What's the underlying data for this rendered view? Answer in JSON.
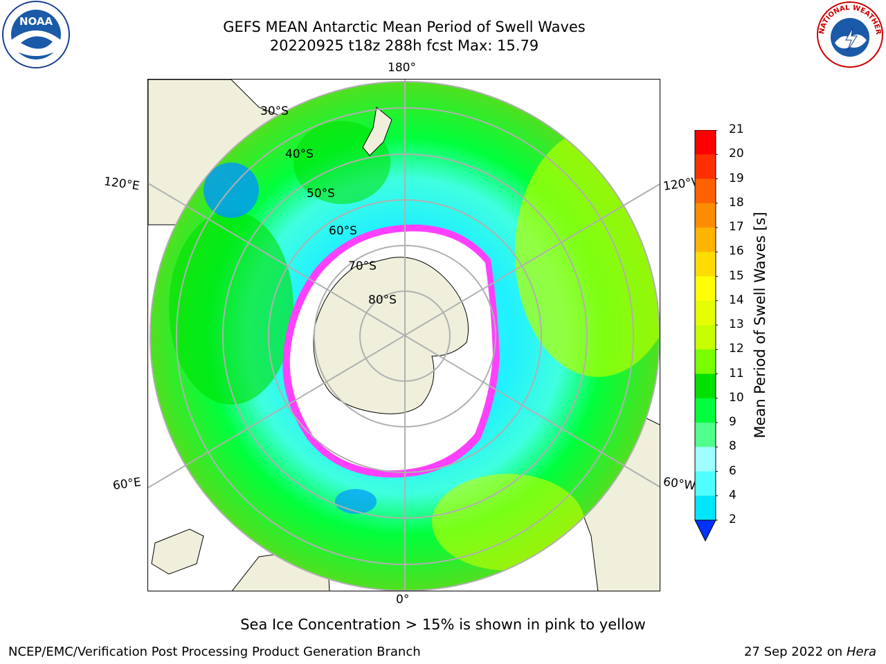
{
  "title_line1": "GEFS MEAN Antarctic Mean Period of Swell Waves",
  "title_line2": "20220925 t18z 288h fcst   Max: 15.79",
  "longitude_labels": {
    "top": "180°",
    "left": "120°E",
    "right": "120°W",
    "bottom_left": "60°E",
    "bottom_right": "60°W",
    "bottom": "0°"
  },
  "latitude_labels": [
    "30°S",
    "40°S",
    "50°S",
    "60°S",
    "70°S",
    "80°S"
  ],
  "colorbar": {
    "title": "Mean Period of Swell Waves [s]",
    "ticks": [
      "21",
      "20",
      "19",
      "18",
      "17",
      "16",
      "15",
      "14",
      "13",
      "12",
      "11",
      "10",
      "9",
      "8",
      "6",
      "4",
      "2"
    ],
    "colors": [
      "#ff0000",
      "#ff3000",
      "#ff6000",
      "#ff8c00",
      "#ffb400",
      "#ffdc00",
      "#ffff00",
      "#e6ff00",
      "#c8ff00",
      "#78ff00",
      "#00e000",
      "#00ff3c",
      "#50ff8c",
      "#a0ffff",
      "#50ffff",
      "#00e6ff",
      "#0096ff",
      "#0032ff"
    ]
  },
  "sea_ice_note": "Sea Ice Concentration > 15% is shown in pink to yellow",
  "footer_left": "NCEP/EMC/Verification Post Processing Product Generation Branch",
  "footer_right_date": "27 Sep 2022 on",
  "footer_right_host": "Hera",
  "logos": {
    "left": "noaa-logo",
    "right": "nws-logo"
  },
  "logo_text": {
    "noaa": "NOAA",
    "nws": "NATIONAL WEATHER SERVICE"
  }
}
